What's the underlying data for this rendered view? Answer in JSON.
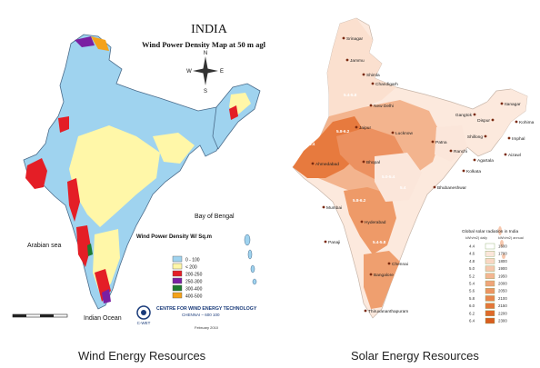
{
  "wind_map": {
    "title": "INDIA",
    "subtitle": "Wind Power Density  Map at 50 m agl",
    "compass": {
      "n": "N",
      "s": "S",
      "e": "E",
      "w": "W"
    },
    "labels": {
      "bay": "Bay of Bengal",
      "arabian": "Arabian sea",
      "indian_ocean": "Indian Ocean",
      "density": "Wind Power Density  W/ Sq.m"
    },
    "legend": [
      {
        "label": "0 - 100",
        "color": "#9fd3ef"
      },
      {
        "label": "< 200",
        "color": "#fff7a8"
      },
      {
        "label": "200-250",
        "color": "#e41e26"
      },
      {
        "label": "250-300",
        "color": "#7a1fa2"
      },
      {
        "label": "300-400",
        "color": "#1e7a2e"
      },
      {
        "label": "400-500",
        "color": "#f4a21a"
      }
    ],
    "cwet": {
      "line1": "CENTRE FOR WIND ENERGY TECHNOLOGY",
      "line2": "CHENNAI – 600 100",
      "logo": "C-WET",
      "date": "February 2010"
    }
  },
  "solar_map": {
    "cities": [
      {
        "name": "Srinagar"
      },
      {
        "name": "Jammu"
      },
      {
        "name": "Shimla"
      },
      {
        "name": "Chandigarh"
      },
      {
        "name": "New Delhi"
      },
      {
        "name": "Jaipur"
      },
      {
        "name": "Lucknow"
      },
      {
        "name": "Patna"
      },
      {
        "name": "Gangtok"
      },
      {
        "name": "Itanagar"
      },
      {
        "name": "Dispur"
      },
      {
        "name": "Kohima"
      },
      {
        "name": "Shillong"
      },
      {
        "name": "Imphal"
      },
      {
        "name": "Aizawl"
      },
      {
        "name": "Agartala"
      },
      {
        "name": "Kolkata"
      },
      {
        "name": "Ranchi"
      },
      {
        "name": "Bhopal"
      },
      {
        "name": "Ahmedabad"
      },
      {
        "name": "Bhubaneshwar"
      },
      {
        "name": "Mumbai"
      },
      {
        "name": "Hyderabad"
      },
      {
        "name": "Panaji"
      },
      {
        "name": "Chennai"
      },
      {
        "name": "Bangalore"
      },
      {
        "name": "Thiruvananthapuram"
      }
    ],
    "zone_labels": [
      "5.4",
      "5.4-5.8",
      "5.8-6.2",
      "6.2-6.4",
      "5.0-5.4",
      "5.4",
      "5.8-6.2",
      "5.4-5.8"
    ],
    "legend_title": "Global solar radiation in India",
    "legend_cols": [
      "kWh/m2) daily",
      "kWh/m2) annual"
    ],
    "legend_rows": [
      {
        "daily": "4.4",
        "annual": "1600",
        "color": "#ffffff"
      },
      {
        "daily": "4.6",
        "annual": "1700",
        "color": "#fbe6da"
      },
      {
        "daily": "4.8",
        "annual": "1800",
        "color": "#f9d7c4"
      },
      {
        "daily": "5.0",
        "annual": "1900",
        "color": "#f6c7ad"
      },
      {
        "daily": "5.2",
        "annual": "1950",
        "color": "#f3b692"
      },
      {
        "daily": "5.4",
        "annual": "2000",
        "color": "#f0a57a"
      },
      {
        "daily": "5.6",
        "annual": "2050",
        "color": "#ec9562"
      },
      {
        "daily": "5.8",
        "annual": "2100",
        "color": "#e8854c"
      },
      {
        "daily": "6.0",
        "annual": "2150",
        "color": "#e4773a"
      },
      {
        "daily": "6.2",
        "annual": "2200",
        "color": "#df6a2a"
      },
      {
        "daily": "6.4",
        "annual": "2300",
        "color": "#d95d1e"
      }
    ]
  },
  "captions": {
    "wind": "Wind Energy Resources",
    "solar": "Solar Energy Resources"
  }
}
